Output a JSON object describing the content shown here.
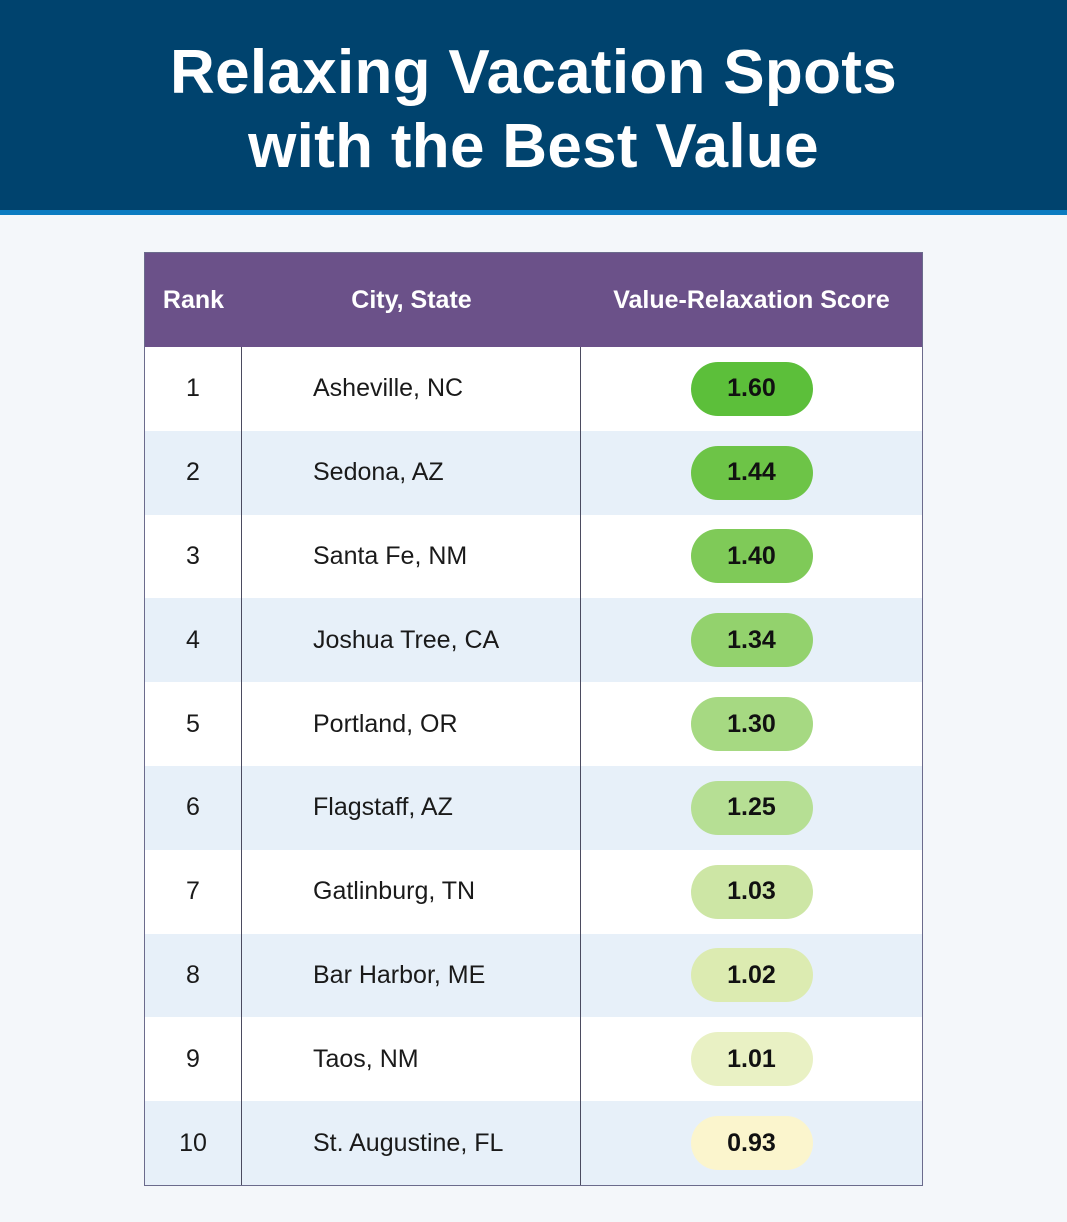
{
  "header": {
    "title_line1": "Relaxing Vacation Spots",
    "title_line2": "with the Best Value"
  },
  "chart_data": {
    "type": "table",
    "columns": [
      "Rank",
      "City, State",
      "Value-Relaxation Score"
    ],
    "rows": [
      {
        "rank": "1",
        "city": "Asheville, NC",
        "score": "1.60",
        "color": "#5cbf3a"
      },
      {
        "rank": "2",
        "city": "Sedona, AZ",
        "score": "1.44",
        "color": "#6dc447"
      },
      {
        "rank": "3",
        "city": "Santa Fe, NM",
        "score": "1.40",
        "color": "#7fca58"
      },
      {
        "rank": "4",
        "city": "Joshua Tree, CA",
        "score": "1.34",
        "color": "#93d26d"
      },
      {
        "rank": "5",
        "city": "Portland, OR",
        "score": "1.30",
        "color": "#a6d982"
      },
      {
        "rank": "6",
        "city": "Flagstaff, AZ",
        "score": "1.25",
        "color": "#b6df94"
      },
      {
        "rank": "7",
        "city": "Gatlinburg, TN",
        "score": "1.03",
        "color": "#cde6a5"
      },
      {
        "rank": "8",
        "city": "Bar Harbor, ME",
        "score": "1.02",
        "color": "#dcebb1"
      },
      {
        "rank": "9",
        "city": "Taos, NM",
        "score": "1.01",
        "color": "#e9f1c4"
      },
      {
        "rank": "10",
        "city": "St. Augustine, FL",
        "score": "0.93",
        "color": "#fbf5cd"
      }
    ]
  }
}
